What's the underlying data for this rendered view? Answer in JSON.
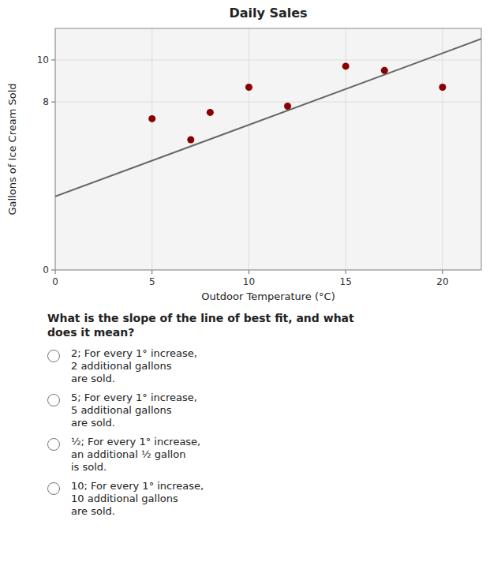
{
  "chart_data": {
    "type": "scatter",
    "title": "Daily Sales",
    "x_label": "Outdoor Temperature (°C)",
    "y_label": "Gallons of Ice Cream Sold",
    "series": [
      {
        "type": "scatter",
        "color": "#8b0000",
        "x": [
          5,
          7,
          8,
          10,
          12,
          15,
          17,
          20
        ],
        "values": [
          7.2,
          6.2,
          7.5,
          8.7,
          7.8,
          9.7,
          9.5,
          8.7
        ]
      },
      {
        "type": "line",
        "color": "#666666",
        "x": [
          0,
          22
        ],
        "values": [
          3.5,
          11.0
        ]
      }
    ],
    "xlim": [
      0,
      22
    ],
    "ylim": [
      0,
      11.5
    ],
    "xticks": [
      0,
      5,
      10,
      15,
      20
    ],
    "yticks": [
      0,
      8,
      10
    ],
    "grid": true,
    "question": "What is the slope of the line of best fit, and what\ndoes it mean?",
    "options": [
      "2; For every 1° increase,\n2 additional gallons\nare sold.",
      "5; For every 1° increase,\n5 additional gallons\nare sold.",
      "½; For every 1° increase,\nan additional ½ gallon\nis sold.",
      "10; For every 1° increase,\n10 additional gallons\nare sold."
    ]
  }
}
